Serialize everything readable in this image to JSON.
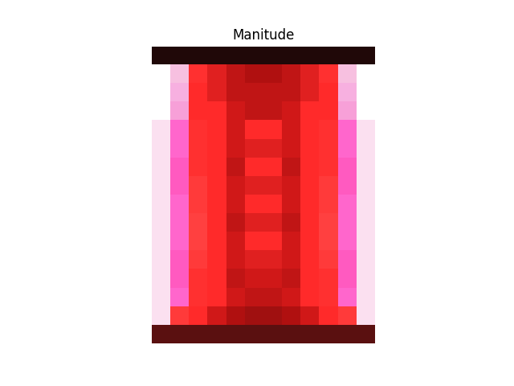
{
  "chart_data": {
    "type": "image",
    "title": "Manitude",
    "tick_labels": false,
    "cells": [
      [
        "#200808",
        "#200808",
        "#200808",
        "#200808",
        "#200808",
        "#200808",
        "#200808",
        "#200808",
        "#200808",
        "#200808",
        "#200808",
        "#200808"
      ],
      [
        "#ffffff",
        "#f7c0e0",
        "#ff3030",
        "#e02020",
        "#c01515",
        "#b01010",
        "#b01010",
        "#c01515",
        "#e02020",
        "#ff3030",
        "#f7c0e0",
        "#ffffff"
      ],
      [
        "#ffffff",
        "#f7b0e0",
        "#ff2a2a",
        "#e02020",
        "#c01515",
        "#c01515",
        "#c01515",
        "#c01515",
        "#e02020",
        "#ff2a2a",
        "#f7b0e0",
        "#ffffff"
      ],
      [
        "#ffffff",
        "#f7a0d8",
        "#ff2a2a",
        "#ff2a2a",
        "#d01818",
        "#c01515",
        "#c01515",
        "#d01818",
        "#ff2a2a",
        "#ff2a2a",
        "#f7a0d8",
        "#ffffff"
      ],
      [
        "#fbe0f0",
        "#ff66cc",
        "#ff3030",
        "#ff2a2a",
        "#d01818",
        "#ff2a2a",
        "#ff2a2a",
        "#d01818",
        "#ff2a2a",
        "#ff3030",
        "#ff66cc",
        "#fbe0f0"
      ],
      [
        "#fbe0f0",
        "#ff66cc",
        "#ff3030",
        "#ff2a2a",
        "#d01818",
        "#e02020",
        "#e02020",
        "#d01818",
        "#ff2a2a",
        "#ff3030",
        "#ff66cc",
        "#fbe0f0"
      ],
      [
        "#fbe0f0",
        "#ff5ac0",
        "#ff3030",
        "#ff2a2a",
        "#c01515",
        "#ff2a2a",
        "#ff2a2a",
        "#c01515",
        "#ff2a2a",
        "#ff3030",
        "#ff5ac0",
        "#fbe0f0"
      ],
      [
        "#fbe0f0",
        "#ff5ac0",
        "#ff3a3a",
        "#ff2a2a",
        "#d01818",
        "#e02020",
        "#e02020",
        "#d01818",
        "#ff2a2a",
        "#ff3a3a",
        "#ff5ac0",
        "#fbe0f0"
      ],
      [
        "#fbe0f0",
        "#ff66cc",
        "#ff3a3a",
        "#ff2a2a",
        "#d01818",
        "#ff2a2a",
        "#ff2a2a",
        "#d01818",
        "#ff2a2a",
        "#ff3a3a",
        "#ff66cc",
        "#fbe0f0"
      ],
      [
        "#fbe0f0",
        "#ff66cc",
        "#ff4040",
        "#ff2a2a",
        "#c01515",
        "#e02020",
        "#e02020",
        "#c01515",
        "#ff2a2a",
        "#ff4040",
        "#ff66cc",
        "#fbe0f0"
      ],
      [
        "#fbe0f0",
        "#ff66cc",
        "#ff4040",
        "#ff2a2a",
        "#d01818",
        "#ff2a2a",
        "#ff2a2a",
        "#d01818",
        "#ff2a2a",
        "#ff4040",
        "#ff66cc",
        "#fbe0f0"
      ],
      [
        "#fbe0f0",
        "#ff5ac0",
        "#ff3a3a",
        "#ff2a2a",
        "#d01818",
        "#e02020",
        "#e02020",
        "#d01818",
        "#ff2a2a",
        "#ff3a3a",
        "#ff5ac0",
        "#fbe0f0"
      ],
      [
        "#fbe0f0",
        "#ff5ac0",
        "#ff3030",
        "#ff2a2a",
        "#c01515",
        "#d01818",
        "#d01818",
        "#c01515",
        "#ff2a2a",
        "#ff3030",
        "#ff5ac0",
        "#fbe0f0"
      ],
      [
        "#fbe0f0",
        "#ff66cc",
        "#ff3030",
        "#ff2a2a",
        "#d01818",
        "#c01515",
        "#c01515",
        "#d01818",
        "#ff2a2a",
        "#ff3030",
        "#ff66cc",
        "#fbe0f0"
      ],
      [
        "#fbe0f0",
        "#ff3a3a",
        "#ff2a2a",
        "#d01818",
        "#b01010",
        "#a01010",
        "#a01010",
        "#b01010",
        "#d01818",
        "#ff2a2a",
        "#ff3a3a",
        "#fbe0f0"
      ],
      [
        "#5a1010",
        "#5a1010",
        "#5a1010",
        "#5a1010",
        "#5a1010",
        "#5a1010",
        "#5a1010",
        "#5a1010",
        "#5a1010",
        "#5a1010",
        "#5a1010",
        "#5a1010"
      ]
    ]
  }
}
